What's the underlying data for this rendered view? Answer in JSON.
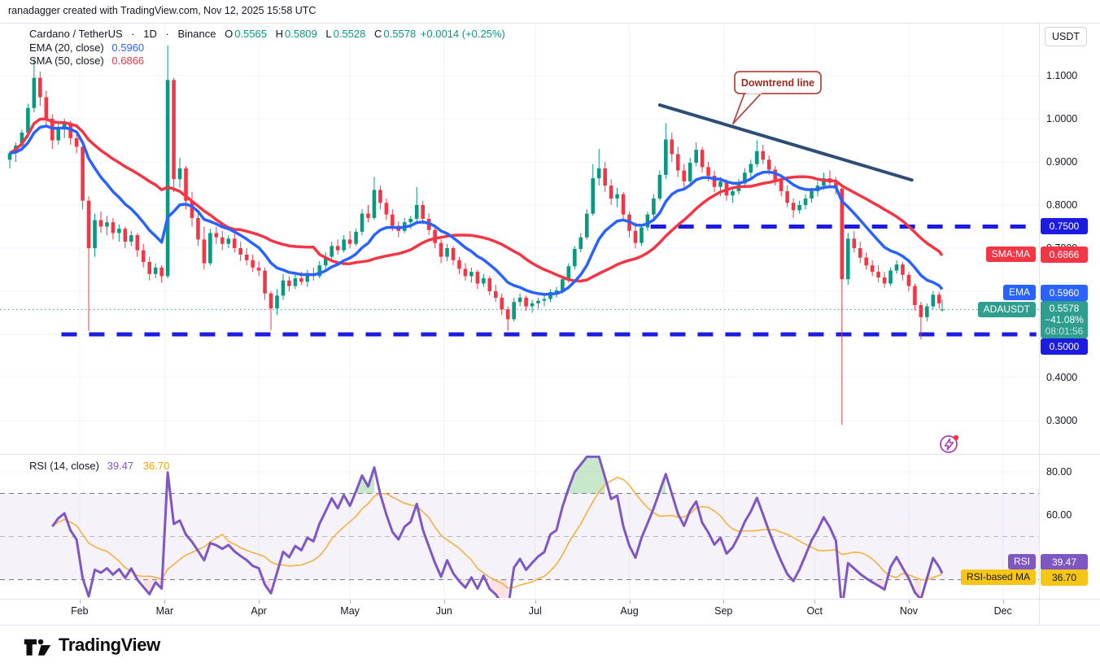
{
  "attribution": "ranadagger created with TradingView.com, Nov 12, 2025 15:58 UTC",
  "header": {
    "title": "Cardano / TetherUS",
    "sep": "·",
    "interval": "1D",
    "exchange": "Binance",
    "o_label": "O",
    "o": "0.5565",
    "h_label": "H",
    "h": "0.5809",
    "l_label": "L",
    "l": "0.5528",
    "c_label": "C",
    "c": "0.5578",
    "change": "+0.0014 (+0.25%)",
    "ema_label": "EMA (20, close)",
    "ema_value": "0.5960",
    "sma_label": "SMA (50, close)",
    "sma_value": "0.6866"
  },
  "price_axis": {
    "currency_button": "USDT",
    "ticks": [
      {
        "label": "1.1000",
        "price": 1.1
      },
      {
        "label": "1.0000",
        "price": 1.0
      },
      {
        "label": "0.9000",
        "price": 0.9
      },
      {
        "label": "0.8000",
        "price": 0.8
      },
      {
        "label": "0.7000",
        "price": 0.7
      },
      {
        "label": "0.4000",
        "price": 0.4
      },
      {
        "label": "0.3000",
        "price": 0.3
      }
    ],
    "badges": {
      "resistance": {
        "label": "0.7500",
        "price": 0.75
      },
      "sma": {
        "tag": "SMA:MA",
        "value": "0.6866",
        "price": 0.6866
      },
      "ema": {
        "tag": "EMA",
        "value": "0.5960",
        "price": 0.596
      },
      "last": {
        "tag": "ADAUSDT",
        "value": "0.5578",
        "change": "−41.08%",
        "countdown": "08:01:56",
        "price": 0.5578
      },
      "support": {
        "label": "0.5000",
        "price": 0.5
      }
    }
  },
  "annotation": {
    "text": "Downtrend line"
  },
  "rsi_pane": {
    "legend_label": "RSI (14, close)",
    "legend_rsi": "39.47",
    "legend_ma": "36.70",
    "ticks": [
      {
        "label": "80.00",
        "value": 80
      },
      {
        "label": "60.00",
        "value": 60
      }
    ],
    "badge_rsi_tag": "RSI",
    "badge_rsi_value": "39.47",
    "badge_ma_tag": "RSI-based MA",
    "badge_ma_value": "36.70"
  },
  "time_axis": {
    "months": [
      {
        "label": "Feb",
        "day": 23
      },
      {
        "label": "Mar",
        "day": 51
      },
      {
        "label": "Apr",
        "day": 82
      },
      {
        "label": "May",
        "day": 112
      },
      {
        "label": "Jun",
        "day": 143
      },
      {
        "label": "Jul",
        "day": 173
      },
      {
        "label": "Aug",
        "day": 204
      },
      {
        "label": "Sep",
        "day": 235
      },
      {
        "label": "Oct",
        "day": 265
      },
      {
        "label": "Nov",
        "day": 296
      },
      {
        "label": "Dec",
        "day": 327
      }
    ]
  },
  "logo_text": "TradingView",
  "colors": {
    "bull": "#089981",
    "bear": "#f23645",
    "ema": "#2962ff",
    "sma": "#f23645",
    "trendline": "#2b4d76",
    "sr_line": "#1c1ce0",
    "last_badge": "#2f9e8f",
    "annotation": "#9c2b23",
    "rsi": "#7e57c2",
    "rsi_ma": "#f5b041",
    "rsi_badge_ma_bg": "#f5c518",
    "grid": "#f0f3fa",
    "level_dash": "#787b86",
    "mid_dash": "#b6b9c4"
  },
  "chart_data": {
    "type": "candlestick",
    "symbol": "ADAUSDT",
    "interval": "1D",
    "title": "Cardano / TetherUS 1D Binance with EMA(20), SMA(50), RSI(14)",
    "ylabel": "USDT",
    "visible_price_range": [
      0.223,
      1.223
    ],
    "x_unit": "day index from Jan 9, 2025",
    "candles": [
      [
        0,
        0.905,
        0.925,
        0.885,
        0.92
      ],
      [
        2,
        0.92,
        0.945,
        0.9,
        0.938
      ],
      [
        4,
        0.938,
        0.975,
        0.925,
        0.968
      ],
      [
        6,
        0.968,
        1.035,
        0.955,
        1.025
      ],
      [
        8,
        1.025,
        1.14,
        1.015,
        1.095
      ],
      [
        10,
        1.095,
        1.11,
        1.03,
        1.05
      ],
      [
        12,
        1.05,
        1.065,
        0.985,
        1.0
      ],
      [
        14,
        1.0,
        1.01,
        0.93,
        0.95
      ],
      [
        16,
        0.95,
        0.99,
        0.94,
        0.975
      ],
      [
        18,
        0.975,
        1.0,
        0.955,
        0.99
      ],
      [
        20,
        0.99,
        0.995,
        0.94,
        0.955
      ],
      [
        22,
        0.955,
        0.97,
        0.92,
        0.935
      ],
      [
        24,
        0.935,
        0.94,
        0.79,
        0.81
      ],
      [
        26,
        0.81,
        0.82,
        0.508,
        0.7
      ],
      [
        28,
        0.7,
        0.78,
        0.68,
        0.765
      ],
      [
        30,
        0.765,
        0.785,
        0.735,
        0.75
      ],
      [
        32,
        0.75,
        0.775,
        0.73,
        0.76
      ],
      [
        34,
        0.76,
        0.77,
        0.72,
        0.735
      ],
      [
        36,
        0.735,
        0.755,
        0.715,
        0.745
      ],
      [
        38,
        0.745,
        0.75,
        0.7,
        0.715
      ],
      [
        40,
        0.715,
        0.74,
        0.705,
        0.73
      ],
      [
        42,
        0.73,
        0.735,
        0.68,
        0.695
      ],
      [
        44,
        0.695,
        0.71,
        0.655,
        0.668
      ],
      [
        46,
        0.668,
        0.68,
        0.625,
        0.64
      ],
      [
        48,
        0.64,
        0.665,
        0.63,
        0.655
      ],
      [
        50,
        0.655,
        0.66,
        0.62,
        0.635
      ],
      [
        52,
        0.635,
        1.17,
        0.63,
        1.09
      ],
      [
        54,
        1.09,
        1.095,
        0.83,
        0.86
      ],
      [
        56,
        0.86,
        0.91,
        0.84,
        0.885
      ],
      [
        58,
        0.885,
        0.89,
        0.79,
        0.81
      ],
      [
        60,
        0.81,
        0.83,
        0.75,
        0.77
      ],
      [
        62,
        0.77,
        0.78,
        0.705,
        0.72
      ],
      [
        64,
        0.72,
        0.75,
        0.65,
        0.665
      ],
      [
        66,
        0.665,
        0.745,
        0.66,
        0.735
      ],
      [
        68,
        0.735,
        0.75,
        0.71,
        0.725
      ],
      [
        70,
        0.725,
        0.74,
        0.695,
        0.71
      ],
      [
        72,
        0.71,
        0.73,
        0.7,
        0.722
      ],
      [
        74,
        0.722,
        0.735,
        0.69,
        0.7
      ],
      [
        76,
        0.7,
        0.715,
        0.67,
        0.685
      ],
      [
        78,
        0.685,
        0.7,
        0.66,
        0.672
      ],
      [
        80,
        0.672,
        0.685,
        0.645,
        0.655
      ],
      [
        82,
        0.655,
        0.67,
        0.635,
        0.648
      ],
      [
        84,
        0.648,
        0.655,
        0.58,
        0.595
      ],
      [
        86,
        0.595,
        0.6,
        0.51,
        0.56
      ],
      [
        88,
        0.56,
        0.605,
        0.545,
        0.59
      ],
      [
        90,
        0.59,
        0.64,
        0.58,
        0.625
      ],
      [
        92,
        0.625,
        0.635,
        0.6,
        0.612
      ],
      [
        94,
        0.612,
        0.64,
        0.605,
        0.63
      ],
      [
        96,
        0.63,
        0.645,
        0.615,
        0.622
      ],
      [
        98,
        0.622,
        0.65,
        0.61,
        0.64
      ],
      [
        100,
        0.64,
        0.655,
        0.625,
        0.635
      ],
      [
        102,
        0.635,
        0.67,
        0.63,
        0.66
      ],
      [
        104,
        0.66,
        0.69,
        0.65,
        0.68
      ],
      [
        106,
        0.68,
        0.715,
        0.67,
        0.705
      ],
      [
        108,
        0.705,
        0.72,
        0.685,
        0.695
      ],
      [
        110,
        0.695,
        0.73,
        0.69,
        0.72
      ],
      [
        112,
        0.72,
        0.74,
        0.7,
        0.71
      ],
      [
        114,
        0.71,
        0.745,
        0.705,
        0.738
      ],
      [
        116,
        0.738,
        0.79,
        0.73,
        0.78
      ],
      [
        118,
        0.78,
        0.8,
        0.76,
        0.77
      ],
      [
        120,
        0.77,
        0.865,
        0.765,
        0.835
      ],
      [
        122,
        0.835,
        0.845,
        0.79,
        0.805
      ],
      [
        124,
        0.805,
        0.815,
        0.765,
        0.778
      ],
      [
        126,
        0.778,
        0.79,
        0.74,
        0.752
      ],
      [
        128,
        0.752,
        0.762,
        0.725,
        0.74
      ],
      [
        130,
        0.74,
        0.77,
        0.735,
        0.76
      ],
      [
        132,
        0.76,
        0.775,
        0.745,
        0.768
      ],
      [
        134,
        0.768,
        0.842,
        0.76,
        0.8
      ],
      [
        136,
        0.8,
        0.81,
        0.755,
        0.768
      ],
      [
        138,
        0.768,
        0.78,
        0.73,
        0.742
      ],
      [
        140,
        0.742,
        0.755,
        0.7,
        0.712
      ],
      [
        142,
        0.712,
        0.72,
        0.665,
        0.68
      ],
      [
        144,
        0.68,
        0.71,
        0.67,
        0.7
      ],
      [
        146,
        0.7,
        0.705,
        0.66,
        0.672
      ],
      [
        148,
        0.672,
        0.68,
        0.64,
        0.652
      ],
      [
        150,
        0.652,
        0.665,
        0.625,
        0.635
      ],
      [
        152,
        0.635,
        0.655,
        0.62,
        0.645
      ],
      [
        154,
        0.645,
        0.65,
        0.605,
        0.618
      ],
      [
        156,
        0.618,
        0.64,
        0.61,
        0.63
      ],
      [
        158,
        0.63,
        0.635,
        0.59,
        0.6
      ],
      [
        160,
        0.6,
        0.615,
        0.575,
        0.585
      ],
      [
        162,
        0.585,
        0.595,
        0.545,
        0.558
      ],
      [
        164,
        0.558,
        0.565,
        0.508,
        0.535
      ],
      [
        166,
        0.535,
        0.585,
        0.53,
        0.575
      ],
      [
        168,
        0.575,
        0.595,
        0.565,
        0.585
      ],
      [
        170,
        0.585,
        0.59,
        0.555,
        0.565
      ],
      [
        172,
        0.565,
        0.58,
        0.55,
        0.572
      ],
      [
        174,
        0.572,
        0.585,
        0.56,
        0.578
      ],
      [
        176,
        0.578,
        0.59,
        0.565,
        0.582
      ],
      [
        178,
        0.582,
        0.605,
        0.575,
        0.598
      ],
      [
        180,
        0.598,
        0.61,
        0.585,
        0.602
      ],
      [
        182,
        0.602,
        0.635,
        0.595,
        0.628
      ],
      [
        184,
        0.628,
        0.665,
        0.62,
        0.658
      ],
      [
        186,
        0.658,
        0.705,
        0.65,
        0.698
      ],
      [
        188,
        0.698,
        0.735,
        0.69,
        0.725
      ],
      [
        190,
        0.725,
        0.79,
        0.72,
        0.78
      ],
      [
        192,
        0.78,
        0.895,
        0.775,
        0.862
      ],
      [
        194,
        0.862,
        0.93,
        0.845,
        0.885
      ],
      [
        196,
        0.885,
        0.9,
        0.83,
        0.845
      ],
      [
        198,
        0.845,
        0.86,
        0.8,
        0.815
      ],
      [
        200,
        0.815,
        0.84,
        0.795,
        0.825
      ],
      [
        202,
        0.825,
        0.83,
        0.765,
        0.778
      ],
      [
        204,
        0.778,
        0.785,
        0.725,
        0.74
      ],
      [
        206,
        0.74,
        0.76,
        0.7,
        0.712
      ],
      [
        208,
        0.712,
        0.755,
        0.705,
        0.748
      ],
      [
        210,
        0.748,
        0.785,
        0.74,
        0.778
      ],
      [
        212,
        0.778,
        0.825,
        0.77,
        0.815
      ],
      [
        214,
        0.815,
        0.88,
        0.81,
        0.87
      ],
      [
        216,
        0.87,
        0.99,
        0.86,
        0.952
      ],
      [
        218,
        0.952,
        0.968,
        0.9,
        0.918
      ],
      [
        220,
        0.918,
        0.935,
        0.865,
        0.88
      ],
      [
        222,
        0.88,
        0.895,
        0.84,
        0.855
      ],
      [
        224,
        0.855,
        0.91,
        0.85,
        0.898
      ],
      [
        226,
        0.898,
        0.945,
        0.89,
        0.928
      ],
      [
        228,
        0.928,
        0.935,
        0.875,
        0.888
      ],
      [
        230,
        0.888,
        0.9,
        0.855,
        0.868
      ],
      [
        232,
        0.868,
        0.88,
        0.83,
        0.842
      ],
      [
        234,
        0.842,
        0.865,
        0.82,
        0.855
      ],
      [
        236,
        0.855,
        0.86,
        0.81,
        0.822
      ],
      [
        238,
        0.822,
        0.84,
        0.805,
        0.832
      ],
      [
        240,
        0.832,
        0.86,
        0.825,
        0.85
      ],
      [
        242,
        0.85,
        0.885,
        0.845,
        0.875
      ],
      [
        244,
        0.875,
        0.905,
        0.865,
        0.895
      ],
      [
        246,
        0.895,
        0.95,
        0.888,
        0.925
      ],
      [
        248,
        0.925,
        0.94,
        0.895,
        0.905
      ],
      [
        250,
        0.905,
        0.915,
        0.87,
        0.882
      ],
      [
        252,
        0.882,
        0.89,
        0.845,
        0.858
      ],
      [
        254,
        0.858,
        0.87,
        0.82,
        0.832
      ],
      [
        256,
        0.832,
        0.845,
        0.795,
        0.805
      ],
      [
        258,
        0.805,
        0.815,
        0.77,
        0.788
      ],
      [
        260,
        0.788,
        0.81,
        0.78,
        0.8
      ],
      [
        262,
        0.8,
        0.825,
        0.79,
        0.815
      ],
      [
        264,
        0.815,
        0.84,
        0.805,
        0.832
      ],
      [
        266,
        0.832,
        0.855,
        0.82,
        0.845
      ],
      [
        268,
        0.845,
        0.875,
        0.835,
        0.862
      ],
      [
        270,
        0.862,
        0.88,
        0.84,
        0.852
      ],
      [
        272,
        0.852,
        0.865,
        0.825,
        0.838
      ],
      [
        274,
        0.838,
        0.845,
        0.29,
        0.628
      ],
      [
        276,
        0.628,
        0.735,
        0.615,
        0.722
      ],
      [
        278,
        0.722,
        0.74,
        0.69,
        0.7
      ],
      [
        280,
        0.7,
        0.715,
        0.665,
        0.678
      ],
      [
        282,
        0.678,
        0.69,
        0.65,
        0.66
      ],
      [
        284,
        0.66,
        0.672,
        0.635,
        0.645
      ],
      [
        286,
        0.645,
        0.66,
        0.62,
        0.632
      ],
      [
        288,
        0.632,
        0.645,
        0.608,
        0.618
      ],
      [
        290,
        0.618,
        0.655,
        0.612,
        0.648
      ],
      [
        292,
        0.648,
        0.672,
        0.64,
        0.662
      ],
      [
        294,
        0.662,
        0.668,
        0.625,
        0.638
      ],
      [
        296,
        0.638,
        0.645,
        0.6,
        0.612
      ],
      [
        298,
        0.612,
        0.618,
        0.555,
        0.568
      ],
      [
        300,
        0.568,
        0.575,
        0.488,
        0.54
      ],
      [
        302,
        0.54,
        0.572,
        0.53,
        0.565
      ],
      [
        304,
        0.565,
        0.6,
        0.558,
        0.592
      ],
      [
        306,
        0.592,
        0.598,
        0.56,
        0.572
      ],
      [
        307,
        0.5565,
        0.5809,
        0.5528,
        0.5578
      ]
    ],
    "overlays": {
      "ema_render_period": 12,
      "sma_render_period": 25,
      "ema_last": 0.596,
      "sma_last": 0.6866,
      "trendline": {
        "from": {
          "day": 214,
          "price": 1.032
        },
        "to": {
          "day": 297,
          "price": 0.858
        }
      },
      "resistance": {
        "price": 0.75,
        "from_day": 211,
        "to_day": 338
      },
      "support": {
        "price": 0.5,
        "from_day": 17,
        "to_day": 338
      },
      "last_price": 0.5578
    },
    "rsi": {
      "render_period": 7,
      "ma_render_period": 10,
      "overbought": 70,
      "middle": 50,
      "oversold": 30,
      "axis_ticks": [
        80,
        60
      ],
      "last": 39.47,
      "ma_last": 36.7
    }
  }
}
